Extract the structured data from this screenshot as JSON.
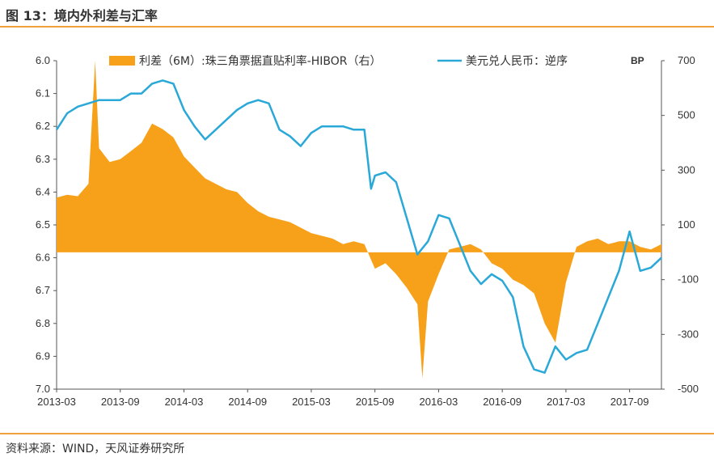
{
  "figure": {
    "title": "图 13：境内外利差与汇率",
    "source": "资料来源：WIND，天风证券研究所",
    "accent_color": "#f0a038"
  },
  "chart_data": {
    "type": "area+line",
    "x_tick_labels": [
      "2013-03",
      "2013-09",
      "2014-03",
      "2014-09",
      "2015-03",
      "2015-09",
      "2016-03",
      "2016-09",
      "2017-03",
      "2017-09"
    ],
    "left_axis": {
      "range": [
        6.0,
        7.0
      ],
      "inverted": true,
      "ticks": [
        "6.0",
        "6.1",
        "6.2",
        "6.3",
        "6.4",
        "6.5",
        "6.6",
        "6.7",
        "6.8",
        "6.9",
        "7.0"
      ]
    },
    "right_axis": {
      "unit": "BP",
      "range": [
        -500,
        700
      ],
      "ticks": [
        "700",
        "500",
        "300",
        "100",
        "-100",
        "-300",
        "-500"
      ]
    },
    "series": [
      {
        "name": "利差（6M）:珠三角票据直贴利率-HIBOR（右）",
        "type": "area",
        "axis": "right",
        "color": "#f7a11a",
        "x": [
          "2013-03",
          "2013-04",
          "2013-05",
          "2013-06",
          "2013-06-20",
          "2013-07",
          "2013-08",
          "2013-09",
          "2013-10",
          "2013-11",
          "2013-12",
          "2014-01",
          "2014-02",
          "2014-03",
          "2014-04",
          "2014-05",
          "2014-06",
          "2014-07",
          "2014-08",
          "2014-09",
          "2014-10",
          "2014-11",
          "2014-12",
          "2015-01",
          "2015-02",
          "2015-03",
          "2015-04",
          "2015-05",
          "2015-06",
          "2015-07",
          "2015-08",
          "2015-09",
          "2015-10",
          "2015-11",
          "2015-12",
          "2016-01",
          "2016-01-15",
          "2016-02",
          "2016-03",
          "2016-04",
          "2016-05",
          "2016-06",
          "2016-07",
          "2016-08",
          "2016-09",
          "2016-10",
          "2016-11",
          "2016-12",
          "2017-01",
          "2017-02",
          "2017-03",
          "2017-04",
          "2017-05",
          "2017-06",
          "2017-07",
          "2017-08",
          "2017-09",
          "2017-10",
          "2017-11",
          "2017-12"
        ],
        "values": [
          200,
          210,
          205,
          250,
          700,
          380,
          330,
          340,
          370,
          400,
          470,
          450,
          420,
          350,
          310,
          270,
          250,
          230,
          220,
          180,
          150,
          130,
          120,
          110,
          90,
          70,
          60,
          50,
          30,
          40,
          30,
          -60,
          -40,
          -80,
          -130,
          -190,
          -460,
          -180,
          -80,
          10,
          20,
          30,
          10,
          -40,
          -60,
          -100,
          -120,
          -150,
          -260,
          -330,
          -110,
          20,
          40,
          50,
          30,
          40,
          40,
          20,
          10,
          30
        ]
      },
      {
        "name": "美元兑人民币：逆序",
        "type": "line",
        "axis": "left",
        "color": "#2aa8d8",
        "x": [
          "2013-03",
          "2013-04",
          "2013-05",
          "2013-06",
          "2013-07",
          "2013-08",
          "2013-09",
          "2013-10",
          "2013-11",
          "2013-12",
          "2014-01",
          "2014-02",
          "2014-03",
          "2014-04",
          "2014-05",
          "2014-06",
          "2014-07",
          "2014-08",
          "2014-09",
          "2014-10",
          "2014-11",
          "2014-12",
          "2015-01",
          "2015-02",
          "2015-03",
          "2015-04",
          "2015-05",
          "2015-06",
          "2015-07",
          "2015-08",
          "2015-08-20",
          "2015-09",
          "2015-10",
          "2015-11",
          "2015-12",
          "2016-01",
          "2016-02",
          "2016-03",
          "2016-04",
          "2016-05",
          "2016-06",
          "2016-07",
          "2016-08",
          "2016-09",
          "2016-10",
          "2016-11",
          "2016-12",
          "2017-01",
          "2017-02",
          "2017-03",
          "2017-04",
          "2017-05",
          "2017-06",
          "2017-07",
          "2017-08",
          "2017-09",
          "2017-10",
          "2017-11",
          "2017-12"
        ],
        "values": [
          6.21,
          6.16,
          6.14,
          6.13,
          6.12,
          6.12,
          6.12,
          6.1,
          6.1,
          6.07,
          6.06,
          6.07,
          6.15,
          6.2,
          6.24,
          6.21,
          6.18,
          6.15,
          6.13,
          6.12,
          6.13,
          6.21,
          6.23,
          6.26,
          6.22,
          6.2,
          6.2,
          6.2,
          6.21,
          6.21,
          6.39,
          6.35,
          6.34,
          6.37,
          6.48,
          6.59,
          6.55,
          6.47,
          6.48,
          6.56,
          6.64,
          6.68,
          6.65,
          6.67,
          6.72,
          6.87,
          6.94,
          6.95,
          6.87,
          6.91,
          6.89,
          6.88,
          6.8,
          6.72,
          6.64,
          6.52,
          6.64,
          6.63,
          6.6
        ]
      }
    ]
  }
}
